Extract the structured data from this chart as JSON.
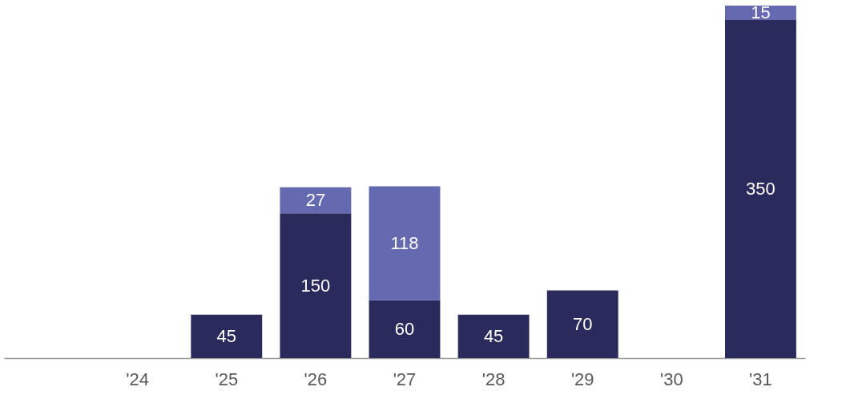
{
  "chart_data": {
    "type": "bar",
    "stacked": true,
    "data_labels": true,
    "categories": [
      null,
      "'24",
      "'25",
      "'26",
      "'27",
      "'28",
      "'29",
      "'30",
      "'31"
    ],
    "series": [
      {
        "color": "#2b2a5c",
        "values": [
          null,
          null,
          45,
          150,
          60,
          45,
          70,
          null,
          350
        ]
      },
      {
        "color": "#6569b0",
        "values": [
          null,
          null,
          null,
          27,
          118,
          null,
          null,
          null,
          15
        ]
      }
    ]
  }
}
